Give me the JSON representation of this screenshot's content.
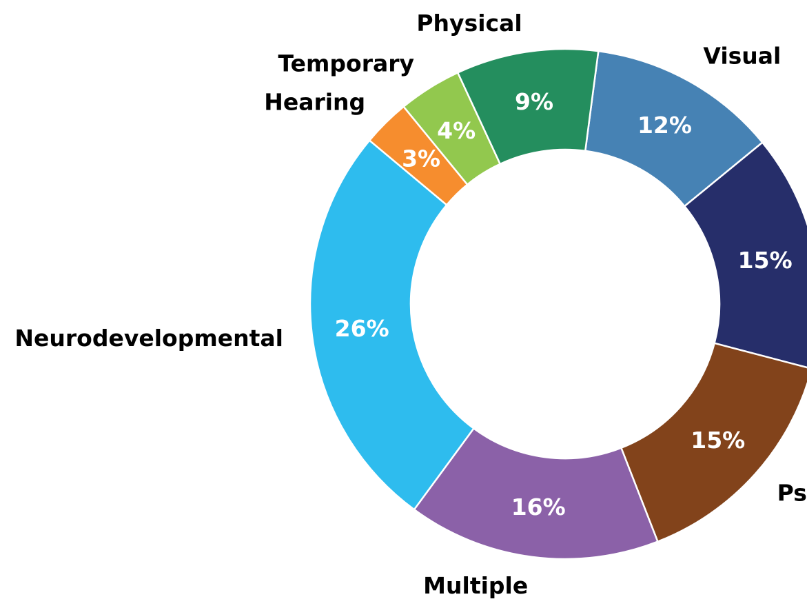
{
  "chart_data": {
    "type": "pie",
    "donut": true,
    "title": "",
    "start_angle_deg": 82.5,
    "direction": "clockwise",
    "slices": [
      {
        "label": "Visual",
        "value": 12,
        "pct_label": "12%",
        "color": "#4682B4"
      },
      {
        "label": "Psychiatric",
        "value": 15,
        "pct_label": "15%",
        "color": "#262E6A"
      },
      {
        "label": "Psychiatric",
        "value": 15,
        "pct_label": "15%",
        "color": "#82431B"
      },
      {
        "label": "Multiple",
        "value": 16,
        "pct_label": "16%",
        "color": "#8B61A8"
      },
      {
        "label": "Neurodevelopmental",
        "value": 26,
        "pct_label": "26%",
        "color": "#2EBCEE"
      },
      {
        "label": "Hearing",
        "value": 3,
        "pct_label": "3%",
        "color": "#F68D2E"
      },
      {
        "label": "Temporary",
        "value": 4,
        "pct_label": "4%",
        "color": "#92C84E"
      },
      {
        "label": "Physical",
        "value": 9,
        "pct_label": "9%",
        "color": "#248E5E"
      }
    ],
    "edge_color": "#ffffff"
  }
}
